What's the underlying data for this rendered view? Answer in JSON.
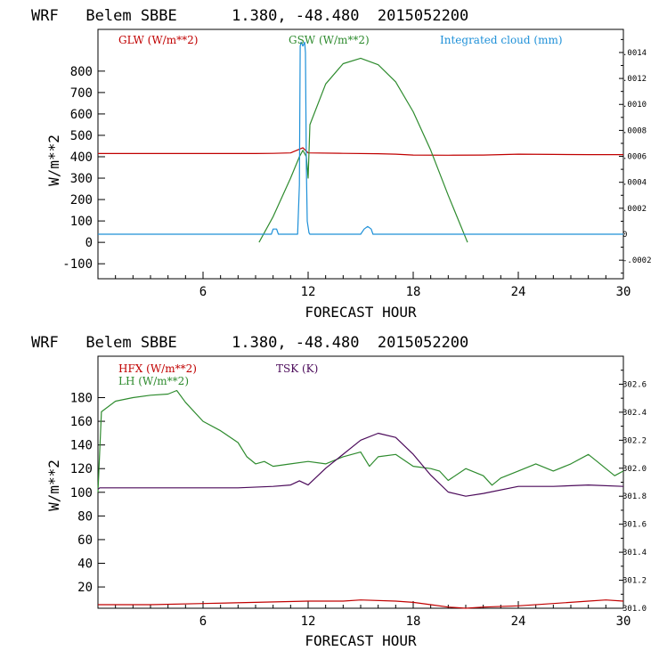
{
  "chart_data": [
    {
      "type": "line",
      "title": "WRF   Belem SBBE      1.380, -48.480  2015052200",
      "xlabel": "FORECAST HOUR",
      "ylabel": "W/m**2",
      "xlim": [
        0,
        30
      ],
      "ylim": [
        -170,
        995
      ],
      "y2lim": [
        -0.000343,
        0.001578
      ],
      "xticks": [
        6,
        12,
        18,
        24,
        30
      ],
      "yticks": [
        -100,
        0,
        100,
        200,
        300,
        400,
        500,
        600,
        700,
        800
      ],
      "y2ticks": [
        -0.0002,
        0,
        0.0002,
        0.0004,
        0.0006,
        0.0008,
        0.001,
        0.0012,
        0.0014
      ],
      "y2tick_labels": [
        "-.0002",
        "0",
        ".0002",
        ".0004",
        ".0006",
        ".0008",
        ".0010",
        ".0012",
        ".0014"
      ],
      "legend_placement": "top",
      "series": [
        {
          "name": "GLW (W/m**2)",
          "color": "#c00000",
          "axis": "left",
          "x": [
            0,
            6,
            9,
            10,
            11,
            11.7,
            12,
            14,
            16,
            17,
            18,
            20,
            22,
            24,
            26,
            28,
            30
          ],
          "y": [
            415,
            415,
            415,
            416,
            418,
            442,
            418,
            416,
            414,
            412,
            408,
            407,
            408,
            412,
            411,
            410,
            410
          ]
        },
        {
          "name": "GSW (W/m**2)",
          "color": "#2e8b2e",
          "axis": "left",
          "x": [
            9.2,
            10,
            11,
            11.5,
            11.7,
            11.9,
            12,
            12.1,
            13,
            14,
            15,
            16,
            17,
            18,
            19,
            20,
            21,
            21.1
          ],
          "y": [
            0,
            120,
            300,
            400,
            430,
            400,
            300,
            550,
            740,
            835,
            860,
            830,
            750,
            610,
            430,
            220,
            20,
            0
          ]
        },
        {
          "name": "Integrated cloud (mm)",
          "color": "#1e90d8",
          "axis": "right",
          "x": [
            0,
            9.9,
            10,
            10.2,
            10.3,
            11.4,
            11.5,
            11.55,
            11.6,
            11.7,
            11.8,
            11.85,
            11.9,
            11.95,
            12.05,
            12.1,
            15,
            15.2,
            15.4,
            15.6,
            15.7,
            30
          ],
          "y": [
            0,
            0,
            4e-05,
            4e-05,
            0,
            0,
            0.00038,
            0.00145,
            0.00148,
            0.00145,
            0.00148,
            0.0014,
            0.00052,
            0.0001,
            1e-05,
            0,
            0,
            4e-05,
            6e-05,
            4e-05,
            0,
            0
          ]
        }
      ]
    },
    {
      "type": "line",
      "title": "WRF   Belem SBBE      1.380, -48.480  2015052200",
      "xlabel": "FORECAST HOUR",
      "ylabel": "W/m**2",
      "xlim": [
        0,
        30
      ],
      "ylim": [
        2,
        215
      ],
      "y2lim": [
        301.0,
        302.8
      ],
      "xticks": [
        6,
        12,
        18,
        24,
        30
      ],
      "yticks": [
        20,
        40,
        60,
        80,
        100,
        120,
        140,
        160,
        180
      ],
      "y2ticks": [
        301.0,
        301.2,
        301.4,
        301.6,
        301.8,
        302.0,
        302.2,
        302.4,
        302.6
      ],
      "y2tick_labels": [
        "301.0",
        "301.2",
        "301.4",
        "301.6",
        "301.8",
        "302.0",
        "302.2",
        "302.4",
        "302.6"
      ],
      "legend_placement": "top-left",
      "series": [
        {
          "name": "HFX (W/m**2)",
          "color": "#c00000",
          "axis": "left",
          "x": [
            0,
            3,
            6,
            9,
            12,
            14,
            15,
            17,
            18,
            19,
            20,
            21,
            22,
            24,
            26,
            28,
            29,
            30
          ],
          "y": [
            5,
            5,
            6,
            7,
            8,
            8,
            9,
            8,
            7,
            5,
            3,
            2,
            3,
            4,
            6,
            8,
            9,
            8
          ]
        },
        {
          "name": "LH (W/m**2)",
          "color": "#2e8b2e",
          "axis": "left",
          "x": [
            0,
            0.2,
            1,
            2,
            3,
            4,
            4.5,
            5,
            6,
            7,
            8,
            8.5,
            9,
            9.5,
            10,
            11,
            12,
            13,
            14,
            15,
            15.5,
            16,
            17,
            18,
            19,
            19.5,
            20,
            21,
            22,
            22.5,
            23,
            24,
            25,
            26,
            27,
            28,
            28.5,
            29,
            29.5,
            30
          ],
          "y": [
            100,
            168,
            177,
            180,
            182,
            183,
            186,
            176,
            160,
            152,
            142,
            130,
            124,
            126,
            122,
            124,
            126,
            124,
            130,
            134,
            122,
            130,
            132,
            122,
            120,
            118,
            110,
            120,
            114,
            106,
            112,
            118,
            124,
            118,
            124,
            132,
            126,
            120,
            114,
            118
          ]
        },
        {
          "name": "TSK (K)",
          "color": "#4b0a5a",
          "axis": "right",
          "x": [
            0,
            0.1,
            2,
            4,
            6,
            8,
            10,
            11,
            11.5,
            12,
            13,
            14,
            15,
            16,
            17,
            18,
            19,
            20,
            21,
            22,
            24,
            26,
            28,
            30
          ],
          "y": [
            301.85,
            301.86,
            301.86,
            301.86,
            301.86,
            301.86,
            301.87,
            301.88,
            301.91,
            301.88,
            302.0,
            302.1,
            302.2,
            302.25,
            302.22,
            302.1,
            301.95,
            301.83,
            301.8,
            301.82,
            301.87,
            301.87,
            301.88,
            301.87
          ]
        }
      ]
    }
  ]
}
